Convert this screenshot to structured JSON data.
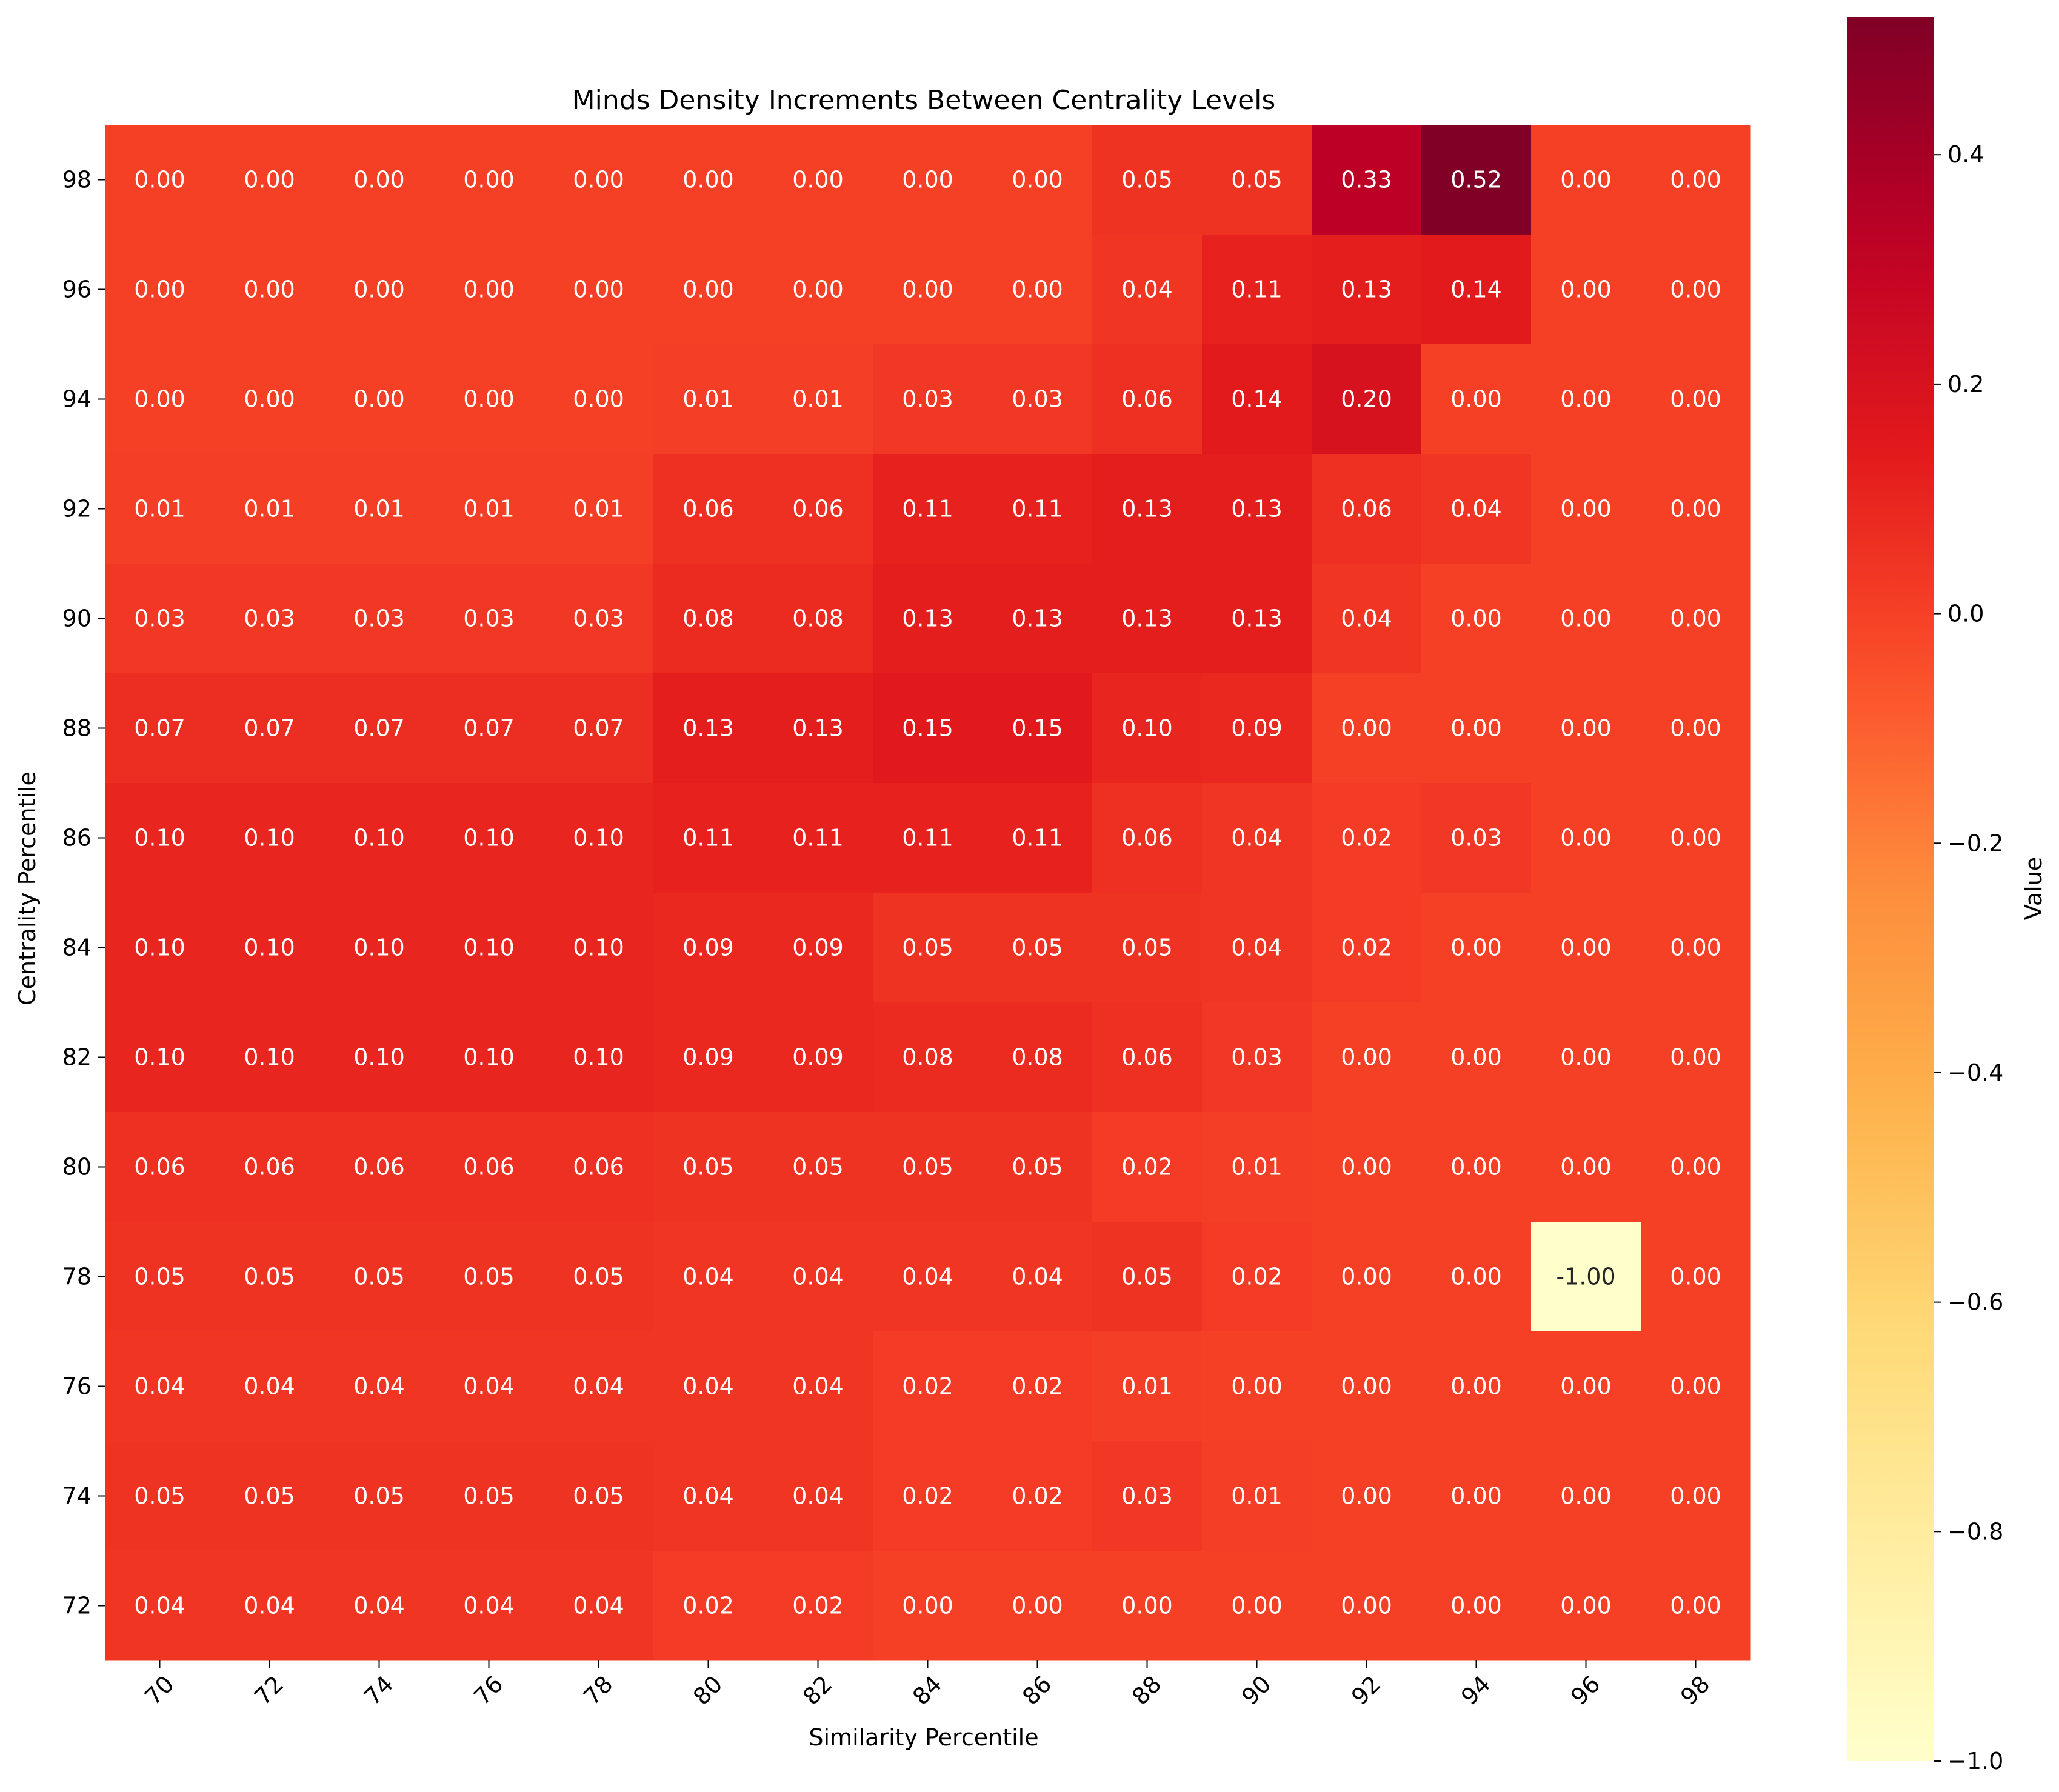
{
  "chart_data": {
    "type": "heatmap",
    "title": "Minds Density Increments Between Centrality Levels",
    "xlabel": "Similarity Percentile",
    "ylabel": "Centrality Percentile",
    "x": [
      "70",
      "72",
      "74",
      "76",
      "78",
      "80",
      "82",
      "84",
      "86",
      "88",
      "90",
      "92",
      "94",
      "96",
      "98"
    ],
    "y": [
      "98",
      "96",
      "94",
      "92",
      "90",
      "88",
      "86",
      "84",
      "82",
      "80",
      "78",
      "76",
      "74",
      "72"
    ],
    "values": [
      [
        0.0,
        0.0,
        0.0,
        0.0,
        0.0,
        0.0,
        0.0,
        0.0,
        0.0,
        0.05,
        0.05,
        0.33,
        0.52,
        0.0,
        0.0
      ],
      [
        0.0,
        0.0,
        0.0,
        0.0,
        0.0,
        0.0,
        0.0,
        0.0,
        0.0,
        0.04,
        0.11,
        0.13,
        0.14,
        0.0,
        0.0
      ],
      [
        0.0,
        0.0,
        0.0,
        0.0,
        0.0,
        0.01,
        0.01,
        0.03,
        0.03,
        0.06,
        0.14,
        0.2,
        0.0,
        0.0,
        0.0
      ],
      [
        0.01,
        0.01,
        0.01,
        0.01,
        0.01,
        0.06,
        0.06,
        0.11,
        0.11,
        0.13,
        0.13,
        0.06,
        0.04,
        0.0,
        0.0
      ],
      [
        0.03,
        0.03,
        0.03,
        0.03,
        0.03,
        0.08,
        0.08,
        0.13,
        0.13,
        0.13,
        0.13,
        0.04,
        0.0,
        0.0,
        0.0
      ],
      [
        0.07,
        0.07,
        0.07,
        0.07,
        0.07,
        0.13,
        0.13,
        0.15,
        0.15,
        0.1,
        0.09,
        0.0,
        0.0,
        0.0,
        0.0
      ],
      [
        0.1,
        0.1,
        0.1,
        0.1,
        0.1,
        0.11,
        0.11,
        0.11,
        0.11,
        0.06,
        0.04,
        0.02,
        0.03,
        0.0,
        0.0
      ],
      [
        0.1,
        0.1,
        0.1,
        0.1,
        0.1,
        0.09,
        0.09,
        0.05,
        0.05,
        0.05,
        0.04,
        0.02,
        0.0,
        0.0,
        0.0
      ],
      [
        0.1,
        0.1,
        0.1,
        0.1,
        0.1,
        0.09,
        0.09,
        0.08,
        0.08,
        0.06,
        0.03,
        0.0,
        0.0,
        0.0,
        0.0
      ],
      [
        0.06,
        0.06,
        0.06,
        0.06,
        0.06,
        0.05,
        0.05,
        0.05,
        0.05,
        0.02,
        0.01,
        0.0,
        0.0,
        0.0,
        0.0
      ],
      [
        0.05,
        0.05,
        0.05,
        0.05,
        0.05,
        0.04,
        0.04,
        0.04,
        0.04,
        0.05,
        0.02,
        0.0,
        0.0,
        -1.0,
        0.0
      ],
      [
        0.04,
        0.04,
        0.04,
        0.04,
        0.04,
        0.04,
        0.04,
        0.02,
        0.02,
        0.01,
        0.0,
        0.0,
        0.0,
        0.0,
        0.0
      ],
      [
        0.05,
        0.05,
        0.05,
        0.05,
        0.05,
        0.04,
        0.04,
        0.02,
        0.02,
        0.03,
        0.01,
        0.0,
        0.0,
        0.0,
        0.0
      ],
      [
        0.04,
        0.04,
        0.04,
        0.04,
        0.04,
        0.02,
        0.02,
        0.0,
        0.0,
        0.0,
        0.0,
        0.0,
        0.0,
        0.0,
        0.0
      ]
    ],
    "value_format_decimals": 2,
    "colormap": "YlOrRd",
    "colorbar": {
      "label": "Value",
      "range": [
        -1.0,
        0.52
      ],
      "ticks": [
        "0.4",
        "0.2",
        "0.0",
        "−0.2",
        "−0.4",
        "−0.6",
        "−0.8",
        "−1.0"
      ],
      "tick_values": [
        0.4,
        0.2,
        0.0,
        -0.2,
        -0.4,
        -0.6,
        -0.8,
        -1.0
      ]
    },
    "annotation_colors": {
      "light": "#ffffff",
      "dark": "#262626"
    }
  }
}
